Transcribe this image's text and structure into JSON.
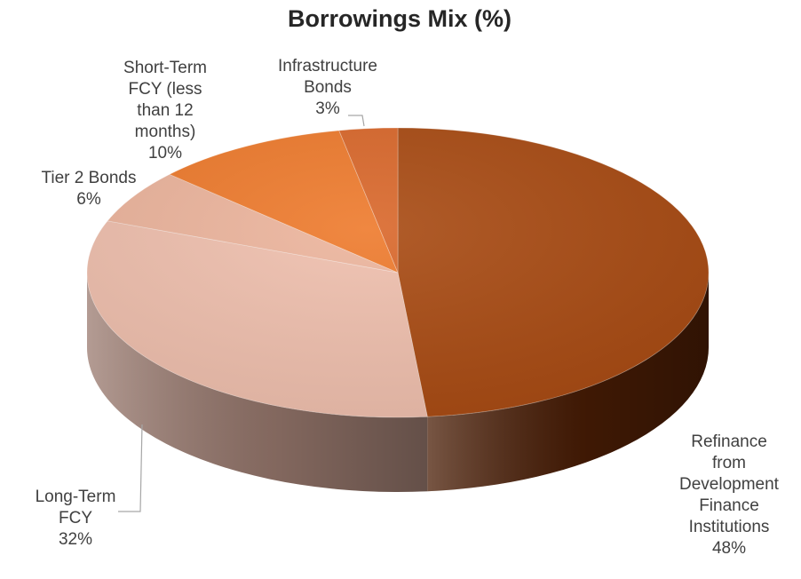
{
  "chart_data": {
    "type": "pie",
    "title": "Borrowings Mix (%)",
    "slices": [
      {
        "label_lines": [
          "Refinance",
          "from",
          "Development",
          "Finance",
          "Institutions"
        ],
        "value": 48,
        "value_label": "48%",
        "top_color": "#a84a12",
        "side_color": "#4a1d05"
      },
      {
        "label_lines": [
          "Long-Term",
          "FCY"
        ],
        "value": 32,
        "value_label": "32%",
        "top_color": "#efbfad",
        "side_color": "#9a7a6f"
      },
      {
        "label_lines": [
          "Tier 2 Bonds"
        ],
        "value": 6,
        "value_label": "6%",
        "top_color": "#ecb49c",
        "side_color": "#a0705e"
      },
      {
        "label_lines": [
          "Short-Term",
          "FCY  (less",
          "than 12",
          "months)"
        ],
        "value": 10,
        "value_label": "10%",
        "top_color": "#ee7a2c",
        "side_color": "#a6501a"
      },
      {
        "label_lines": [
          "Infrastructure",
          "Bonds"
        ],
        "value": 3,
        "value_label": "3%",
        "top_color": "#d9672a",
        "side_color": "#8f4218"
      }
    ],
    "legend": "none"
  }
}
